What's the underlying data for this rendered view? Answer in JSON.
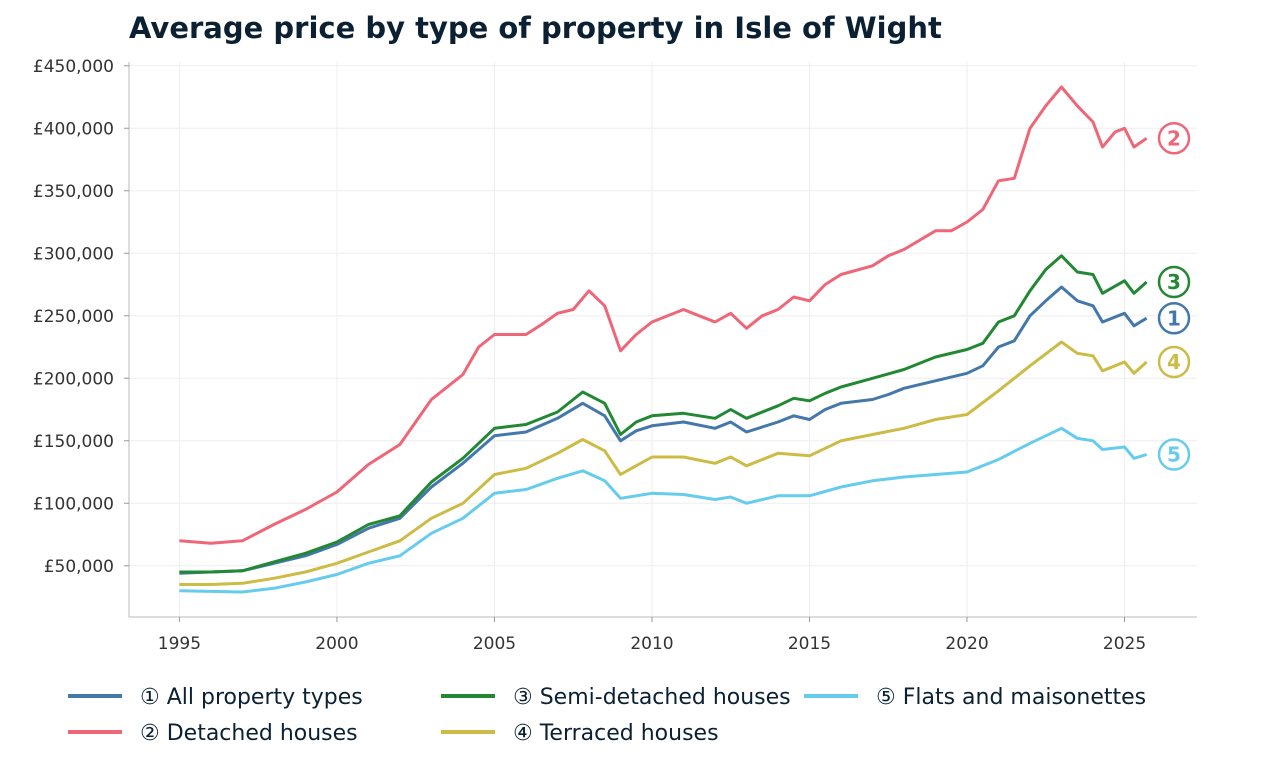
{
  "chart_data": {
    "type": "line",
    "title": "Average price by type of property in Isle of Wight",
    "xlabel": "",
    "ylabel": "",
    "xlim": [
      1993.4,
      2027.3
    ],
    "ylim": [
      9000,
      453000
    ],
    "grid": true,
    "legend_placement": "bottom",
    "x_ticks": [
      "1995",
      "2000",
      "2005",
      "2010",
      "2015",
      "2020",
      "2025"
    ],
    "x_tick_values": [
      1995,
      2000,
      2005,
      2010,
      2015,
      2020,
      2025
    ],
    "y_ticks": [
      "£50,000",
      "£100,000",
      "£150,000",
      "£200,000",
      "£250,000",
      "£300,000",
      "£350,000",
      "£400,000",
      "£450,000"
    ],
    "y_tick_values": [
      50000,
      100000,
      150000,
      200000,
      250000,
      300000,
      350000,
      400000,
      450000
    ],
    "series": [
      {
        "name": "① All property types",
        "end_label": "1",
        "color": "#4477AA",
        "x": [
          1995,
          1996,
          1997,
          1998,
          1999,
          2000,
          2001,
          2002,
          2003,
          2004,
          2005,
          2006,
          2007,
          2007.8,
          2008.5,
          2009,
          2009.5,
          2010,
          2011,
          2012,
          2012.5,
          2013,
          2014,
          2014.5,
          2015,
          2015.5,
          2016,
          2017,
          2017.5,
          2018,
          2019,
          2020,
          2020.5,
          2021,
          2021.5,
          2022,
          2022.5,
          2023,
          2023.5,
          2024,
          2024.3,
          2025,
          2025.3,
          2025.7
        ],
        "y": [
          44000,
          45000,
          46000,
          52000,
          58000,
          67000,
          80000,
          88000,
          113000,
          132000,
          154000,
          157000,
          168000,
          180000,
          170000,
          150000,
          158000,
          162000,
          165000,
          160000,
          165000,
          157000,
          165000,
          170000,
          167000,
          175000,
          180000,
          183000,
          187000,
          192000,
          198000,
          204000,
          210000,
          225000,
          230000,
          250000,
          262000,
          273000,
          262000,
          258000,
          245000,
          252000,
          242000,
          248000
        ]
      },
      {
        "name": "② Detached houses",
        "end_label": "2",
        "color": "#EE6677",
        "x": [
          1995,
          1996,
          1997,
          1998,
          1999,
          2000,
          2001,
          2002,
          2003,
          2004,
          2004.5,
          2005,
          2006,
          2006.5,
          2007,
          2007.5,
          2008,
          2008.5,
          2009,
          2009.5,
          2010,
          2011,
          2011.5,
          2012,
          2012.5,
          2013,
          2013.5,
          2014,
          2014.5,
          2015,
          2015.5,
          2016,
          2017,
          2017.5,
          2018,
          2019,
          2019.5,
          2020,
          2020.5,
          2021,
          2021.5,
          2022,
          2022.5,
          2023,
          2023.5,
          2024,
          2024.3,
          2024.7,
          2025,
          2025.3,
          2025.7
        ],
        "y": [
          70000,
          68000,
          70000,
          83000,
          95000,
          109000,
          131000,
          147000,
          183000,
          203000,
          225000,
          235000,
          235000,
          243000,
          252000,
          255000,
          270000,
          258000,
          222000,
          235000,
          245000,
          255000,
          250000,
          245000,
          252000,
          240000,
          250000,
          255000,
          265000,
          262000,
          275000,
          283000,
          290000,
          298000,
          303000,
          318000,
          318000,
          325000,
          335000,
          358000,
          360000,
          400000,
          418000,
          433000,
          418000,
          405000,
          385000,
          397000,
          400000,
          385000,
          392000
        ]
      },
      {
        "name": "③ Semi-detached houses",
        "end_label": "3",
        "color": "#228833",
        "x": [
          1995,
          1996,
          1997,
          1998,
          1999,
          2000,
          2001,
          2002,
          2003,
          2004,
          2005,
          2006,
          2007,
          2007.8,
          2008.5,
          2009,
          2009.5,
          2010,
          2011,
          2012,
          2012.5,
          2013,
          2014,
          2014.5,
          2015,
          2015.5,
          2016,
          2017,
          2018,
          2019,
          2020,
          2020.5,
          2021,
          2021.5,
          2022,
          2022.5,
          2023,
          2023.5,
          2024,
          2024.3,
          2025,
          2025.3,
          2025.7
        ],
        "y": [
          45000,
          45000,
          46000,
          53000,
          60000,
          69000,
          83000,
          90000,
          117000,
          136000,
          160000,
          163000,
          173000,
          189000,
          180000,
          155000,
          165000,
          170000,
          172000,
          168000,
          175000,
          168000,
          178000,
          184000,
          182000,
          188000,
          193000,
          200000,
          207000,
          217000,
          223000,
          228000,
          245000,
          250000,
          270000,
          287000,
          298000,
          285000,
          283000,
          268000,
          278000,
          268000,
          277000
        ]
      },
      {
        "name": "④ Terraced houses",
        "end_label": "4",
        "color": "#CCBB44",
        "x": [
          1995,
          1996,
          1997,
          1998,
          1999,
          2000,
          2001,
          2002,
          2003,
          2004,
          2005,
          2006,
          2007,
          2007.8,
          2008.5,
          2009,
          2010,
          2011,
          2012,
          2012.5,
          2013,
          2014,
          2015,
          2016,
          2017,
          2018,
          2019,
          2020,
          2021,
          2022,
          2023,
          2023.5,
          2024,
          2024.3,
          2025,
          2025.3,
          2025.7
        ],
        "y": [
          35000,
          35000,
          36000,
          40000,
          45000,
          52000,
          61000,
          70000,
          88000,
          100000,
          123000,
          128000,
          140000,
          151000,
          142000,
          123000,
          137000,
          137000,
          132000,
          137000,
          130000,
          140000,
          138000,
          150000,
          155000,
          160000,
          167000,
          171000,
          190000,
          210000,
          229000,
          220000,
          218000,
          206000,
          213000,
          204000,
          213000
        ]
      },
      {
        "name": "⑤ Flats and maisonettes",
        "end_label": "5",
        "color": "#66CCEE",
        "x": [
          1995,
          1996,
          1997,
          1998,
          1999,
          2000,
          2001,
          2002,
          2003,
          2004,
          2005,
          2006,
          2007,
          2007.8,
          2008.5,
          2009,
          2010,
          2011,
          2012,
          2012.5,
          2013,
          2014,
          2015,
          2016,
          2017,
          2018,
          2019,
          2020,
          2021,
          2022,
          2023,
          2023.5,
          2024,
          2024.3,
          2025,
          2025.3,
          2025.7
        ],
        "y": [
          30000,
          29500,
          29000,
          32000,
          37000,
          43000,
          52000,
          58000,
          76000,
          88000,
          108000,
          111000,
          120000,
          126000,
          118000,
          104000,
          108000,
          107000,
          103000,
          105000,
          100000,
          106000,
          106000,
          113000,
          118000,
          121000,
          123000,
          125000,
          135000,
          148000,
          160000,
          152000,
          150000,
          143000,
          145000,
          136000,
          139000
        ]
      }
    ]
  }
}
